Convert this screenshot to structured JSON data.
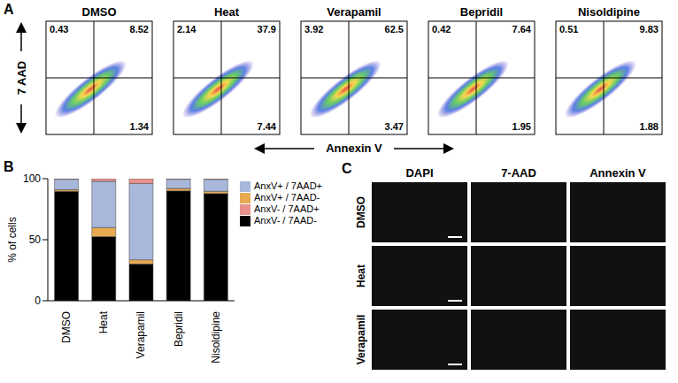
{
  "panel_letters": [
    "A",
    "B",
    "C"
  ],
  "panel_a": {
    "x_label": "Annexin V",
    "y_label": "7 AAD",
    "plots": [
      {
        "title": "DMSO",
        "upper_left": 0.43,
        "upper_right": 8.52,
        "lower_right": 1.34
      },
      {
        "title": "Heat",
        "upper_left": 2.14,
        "upper_right": 37.9,
        "lower_right": 7.44
      },
      {
        "title": "Verapamil",
        "upper_left": 3.92,
        "upper_right": 62.5,
        "lower_right": 3.47
      },
      {
        "title": "Bepridil",
        "upper_left": 0.42,
        "upper_right": 7.64,
        "lower_right": 1.95
      },
      {
        "title": "Nisoldipine",
        "upper_left": 0.51,
        "upper_right": 9.83,
        "lower_right": 1.88
      }
    ]
  },
  "chart_data": {
    "type": "bar",
    "stacked": true,
    "categories": [
      "DMSO",
      "Heat",
      "Verapamil",
      "Bepridil",
      "Nisoldipine"
    ],
    "series": [
      {
        "name": "AnxV- / 7AAD-",
        "color": "#000000",
        "values": [
          89.7,
          52.5,
          30.1,
          89.99,
          87.78
        ]
      },
      {
        "name": "AnxV+ / 7AAD-",
        "color": "#e8a953",
        "values": [
          1.34,
          7.44,
          3.47,
          1.95,
          1.88
        ]
      },
      {
        "name": "AnxV+ / 7AAD+",
        "color": "#a8b7da",
        "values": [
          8.52,
          37.9,
          62.5,
          7.64,
          9.83
        ]
      },
      {
        "name": "AnxV- / 7AAD+",
        "color": "#e8928c",
        "values": [
          0.43,
          2.14,
          3.92,
          0.42,
          0.51
        ]
      }
    ],
    "ylim": [
      0,
      100
    ],
    "yticks": [
      0,
      50,
      100
    ],
    "y_label": "% of cells",
    "legend": "right"
  },
  "panel_c": {
    "columns": [
      "DAPI",
      "7-AAD",
      "Annexin V"
    ],
    "rows": [
      "DMSO",
      "Heat",
      "Verapamil"
    ]
  }
}
